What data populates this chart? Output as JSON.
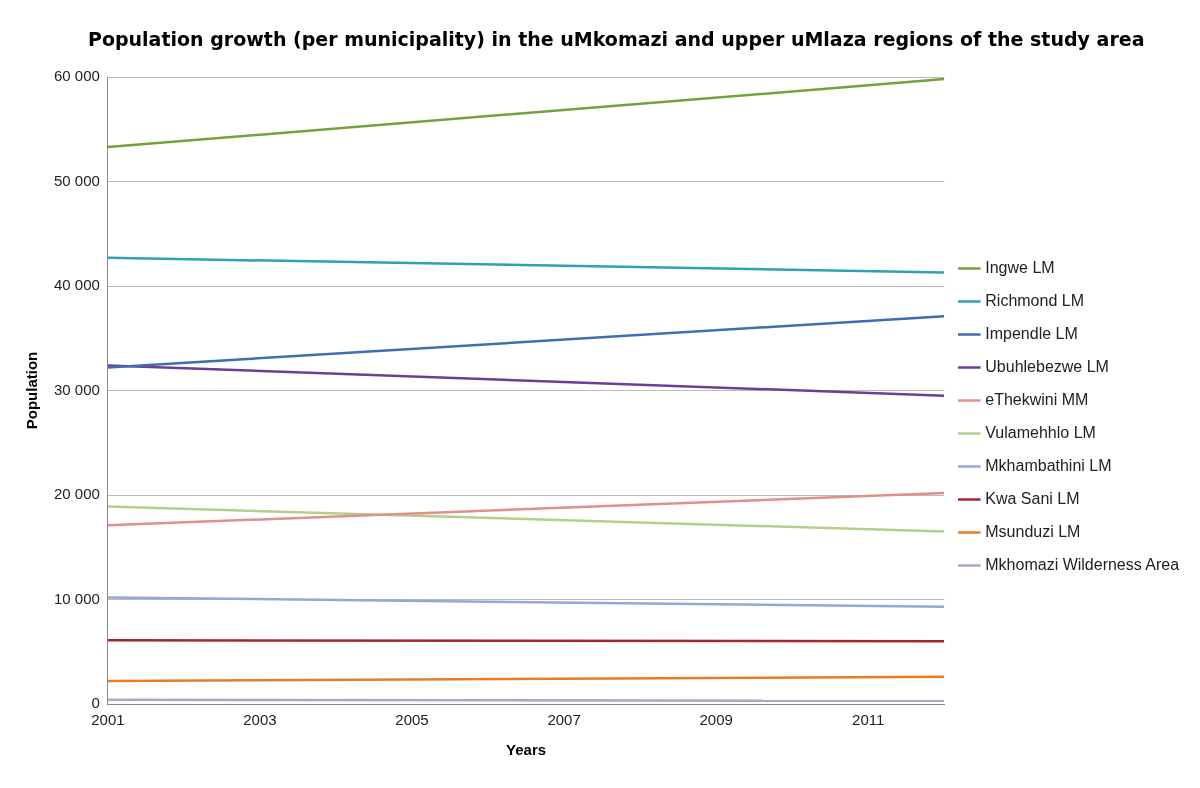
{
  "chart_data": {
    "type": "line",
    "title": "Population growth (per municipality) in the uMkomazi and upper uMlaza regions of the study area",
    "xlabel": "Years",
    "ylabel": "Population",
    "x": [
      2001,
      2012
    ],
    "series": [
      {
        "name": "Ingwe LM",
        "color": "#77a03a",
        "values": [
          53300,
          59800
        ]
      },
      {
        "name": "Richmond LM",
        "color": "#31a0b0",
        "values": [
          42700,
          41300
        ]
      },
      {
        "name": "Impendle LM",
        "color": "#3f6eb0",
        "values": [
          32200,
          37100
        ]
      },
      {
        "name": "Ubuhlebezwe LM",
        "color": "#6b3f98",
        "values": [
          32400,
          29500
        ]
      },
      {
        "name": "eThekwini MM",
        "color": "#e0908c",
        "values": [
          17100,
          20200
        ]
      },
      {
        "name": "Vulamehhlo LM",
        "color": "#b2d08a",
        "values": [
          18900,
          16500
        ]
      },
      {
        "name": "Mkhambathini LM",
        "color": "#94a8d4",
        "values": [
          10200,
          9300
        ]
      },
      {
        "name": "Kwa Sani LM",
        "color": "#a3282a",
        "values": [
          6100,
          6000
        ]
      },
      {
        "name": "Msunduzi LM",
        "color": "#e57e26",
        "values": [
          2200,
          2600
        ]
      },
      {
        "name": "Mkhomazi Wilderness Area",
        "color": "#b3a2c8",
        "values": [
          400,
          300
        ]
      }
    ],
    "xlim": [
      2001,
      2012
    ],
    "xticks": [
      2001,
      2003,
      2005,
      2007,
      2009,
      2011
    ],
    "ylim": [
      0,
      60000
    ],
    "yticks": [
      {
        "value": 0,
        "label": "0"
      },
      {
        "value": 10000,
        "label": "10 000"
      },
      {
        "value": 20000,
        "label": "20 000"
      },
      {
        "value": 30000,
        "label": "30 000"
      },
      {
        "value": 40000,
        "label": "40 000"
      },
      {
        "value": 50000,
        "label": "50 000"
      },
      {
        "value": 60000,
        "label": "60 000"
      }
    ],
    "grid": "y",
    "legend": "right",
    "marker": "none",
    "line_style": "solid"
  }
}
